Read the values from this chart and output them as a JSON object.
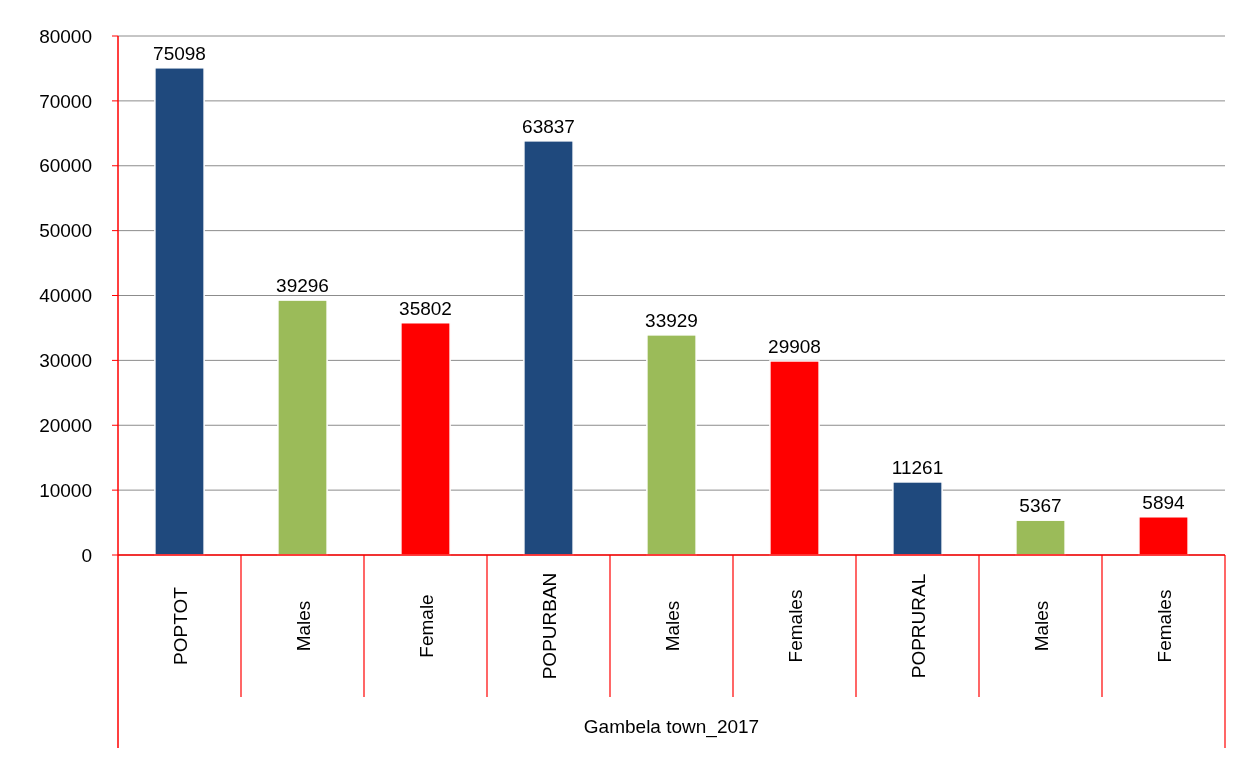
{
  "chart_data": {
    "type": "bar",
    "xlabel": "Gambela town_2017",
    "categories": [
      "POPTOT",
      "Males",
      "Female",
      "POPURBAN",
      "Males",
      "Females",
      "POPRURAL",
      "Males",
      "Females"
    ],
    "values": [
      75098,
      39296,
      35802,
      63837,
      33929,
      29908,
      11261,
      5367,
      5894
    ],
    "colors": [
      "#1f497d",
      "#9bbb59",
      "#ff0000",
      "#1f497d",
      "#9bbb59",
      "#ff0000",
      "#1f497d",
      "#9bbb59",
      "#ff0000"
    ],
    "ylim": [
      0,
      80000
    ],
    "yticks": [
      0,
      10000,
      20000,
      30000,
      40000,
      50000,
      60000,
      70000,
      80000
    ],
    "grid": "y",
    "data_labels": true
  }
}
